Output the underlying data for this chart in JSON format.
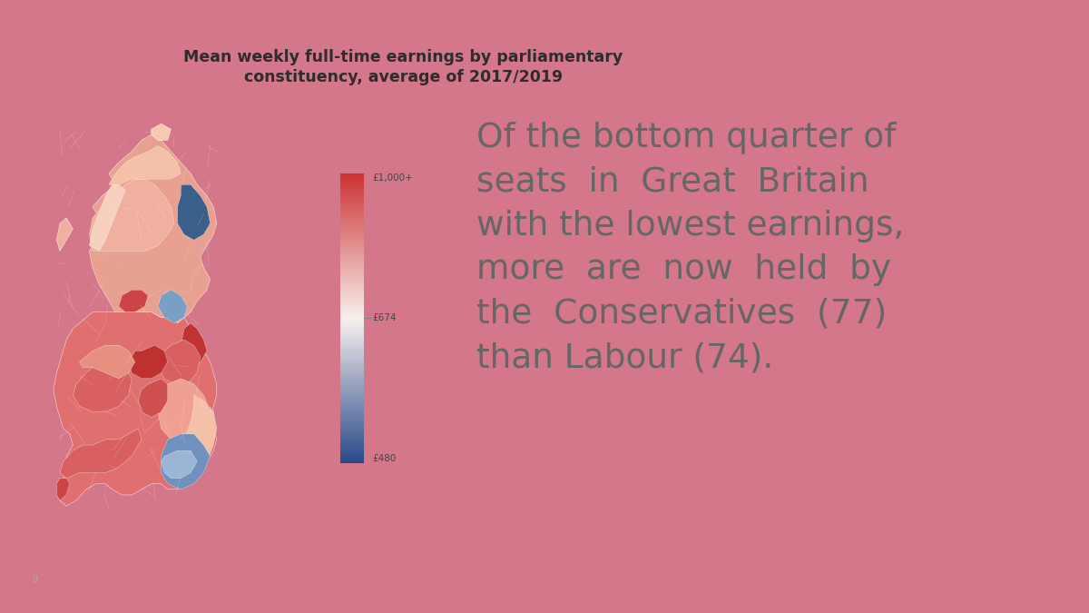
{
  "background_color": "#d4778a",
  "inner_bg_color": "#ffffff",
  "title_line1": "Mean weekly full-time earnings by parliamentary",
  "title_line2": "constituency, average of 2017/2019",
  "title_fontsize": 12.5,
  "title_color": "#2d2d2d",
  "main_text_lines": [
    "Of the bottom quarter of",
    "seats  in  Great  Britain",
    "with the lowest earnings,",
    "more  are  now  held  by",
    "the  Conservatives  (77)",
    "than Labour (74)."
  ],
  "main_text_fontsize": 27,
  "main_text_color": "#666666",
  "colorbar_top_label": "£1,000+",
  "colorbar_mid_label": "£674",
  "colorbar_bot_label": "£480",
  "colorbar_top_color": "#2a4a8a",
  "colorbar_mid_color": "#f8f0ee",
  "colorbar_bot_color": "#cc3333",
  "slide_number": "9"
}
